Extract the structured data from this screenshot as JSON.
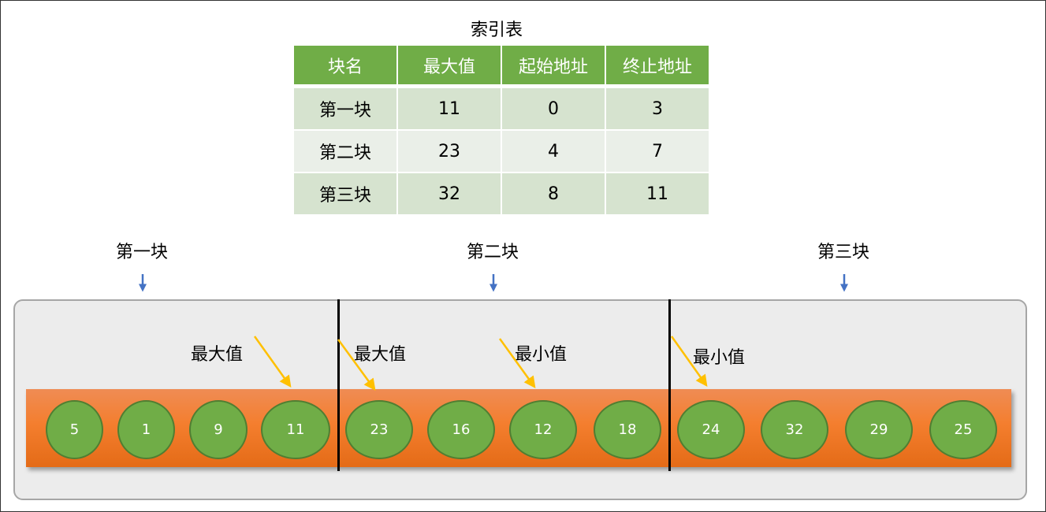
{
  "title": "索引表",
  "index_table": {
    "headers": [
      "块名",
      "最大值",
      "起始地址",
      "终止地址"
    ],
    "rows": [
      [
        "第一块",
        "11",
        "0",
        "3"
      ],
      [
        "第二块",
        "23",
        "4",
        "7"
      ],
      [
        "第三块",
        "32",
        "8",
        "11"
      ]
    ]
  },
  "block_labels": [
    "第一块",
    "第二块",
    "第三块"
  ],
  "elements": [
    "5",
    "1",
    "9",
    "11",
    "23",
    "16",
    "12",
    "18",
    "24",
    "32",
    "29",
    "25"
  ],
  "annotations": [
    "最大值",
    "最大值",
    "最小值",
    "最小值"
  ],
  "colors": {
    "header": "#70ad47",
    "node": "#70ad47",
    "bar": "#f47e2e",
    "arrow": "#ffc000",
    "pointer": "#4472c4"
  }
}
